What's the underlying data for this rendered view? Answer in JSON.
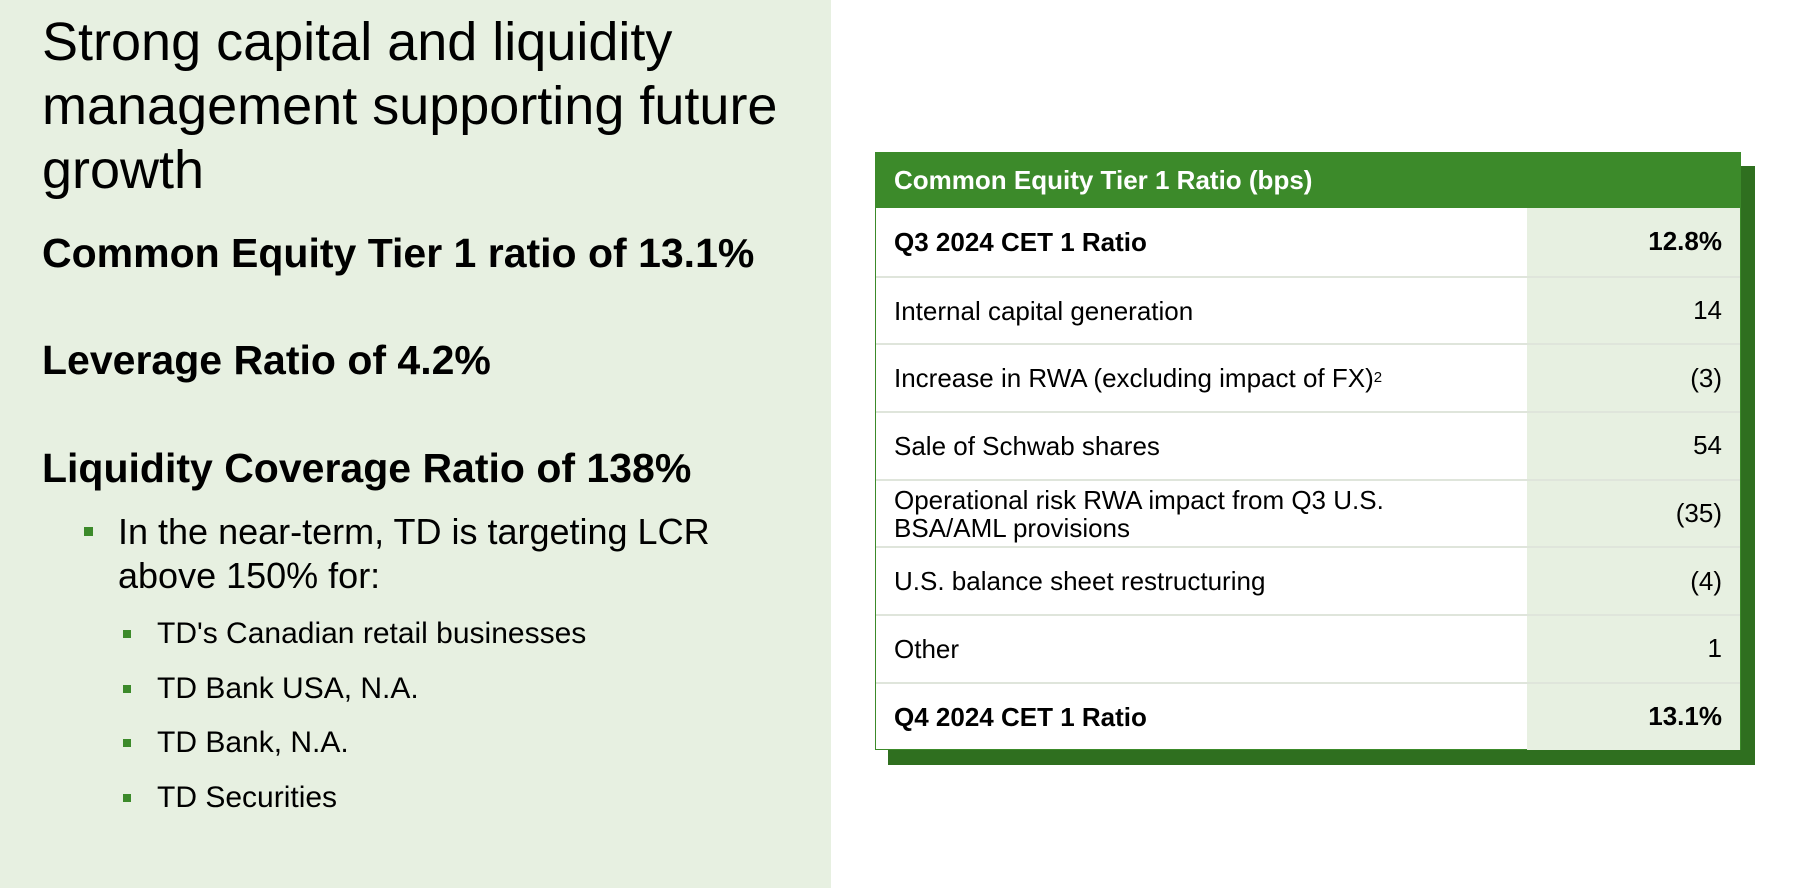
{
  "left": {
    "title": "Strong capital and liquidity management supporting future growth",
    "metrics": [
      "Common Equity Tier 1 ratio of 13.1%",
      "Leverage Ratio of 4.2%",
      "Liquidity Coverage Ratio of 138%"
    ],
    "bullet": "In the near-term, TD is targeting LCR above 150% for:",
    "sub_bullets": [
      "TD's Canadian retail businesses",
      "TD Bank USA, N.A.",
      "TD Bank, N.A.",
      "TD Securities"
    ]
  },
  "table": {
    "header": "Common Equity Tier 1 Ratio (bps)",
    "rows": [
      {
        "label": "Q3 2024 CET 1 Ratio",
        "value": "12.8%"
      },
      {
        "label": "Internal capital generation",
        "value": "14"
      },
      {
        "label": "Increase in RWA (excluding impact of FX)",
        "sup": "2",
        "value": "(3)"
      },
      {
        "label": "Sale of Schwab shares",
        "value": "54"
      },
      {
        "label": "Operational risk RWA impact from Q3 U.S. BSA/AML provisions",
        "value": "(35)"
      },
      {
        "label": "U.S. balance sheet restructuring",
        "value": "(4)"
      },
      {
        "label": "Other",
        "value": "1"
      },
      {
        "label": "Q4 2024 CET 1 Ratio",
        "value": "13.1%"
      }
    ]
  },
  "colors": {
    "accent_green": "#3c8a2a",
    "panel_green": "#e7f0e1",
    "shadow_green": "#2f6f1f"
  }
}
